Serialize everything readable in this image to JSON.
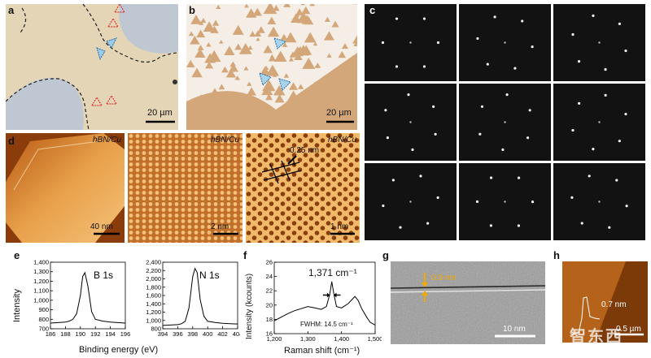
{
  "panels": {
    "a": {
      "label": "a",
      "scale": "20 µm"
    },
    "b": {
      "label": "b",
      "scale": "20 µm"
    },
    "c": {
      "label": "c"
    },
    "d": {
      "label": "d",
      "tag": "hBN/Cu",
      "scale1": "40 nm",
      "scale2": "2 nm",
      "scale3": "1 nm",
      "lattice": "0.25 nm"
    },
    "e": {
      "label": "e",
      "ylabel": "Intensity",
      "xlabel": "Binding energy (eV)"
    },
    "f": {
      "label": "f",
      "ylabel": "Intensity (kcounts)",
      "xlabel": "Raman shift (cm⁻¹)",
      "peak": "1,371 cm⁻¹",
      "fwhm": "FWHM: 14.5 cm⁻¹"
    },
    "g": {
      "label": "g",
      "thickness": "0.9 nm",
      "scale": "10 nm"
    },
    "h": {
      "label": "h",
      "height": "0.7 nm",
      "scale": "0.5 µm"
    }
  },
  "watermark": "智东西",
  "chart_data": [
    {
      "type": "line",
      "title": "B 1s",
      "xlabel": "",
      "ylabel": "Intensity",
      "xlim": [
        186,
        196
      ],
      "ylim": [
        700,
        1400
      ],
      "x": [
        186,
        187,
        188,
        188.5,
        189,
        189.5,
        190,
        190.3,
        190.6,
        191,
        191.5,
        192,
        193,
        194,
        195,
        196
      ],
      "y": [
        760,
        765,
        770,
        780,
        800,
        860,
        1050,
        1250,
        1290,
        1150,
        880,
        800,
        780,
        770,
        765,
        760
      ]
    },
    {
      "type": "line",
      "title": "N 1s",
      "xlabel": "",
      "ylabel": "",
      "xlim": [
        394,
        404
      ],
      "ylim": [
        800,
        2400
      ],
      "x": [
        394,
        395,
        396,
        396.5,
        397,
        397.5,
        398,
        398.3,
        398.6,
        399,
        399.5,
        400,
        401,
        402,
        403,
        404
      ],
      "y": [
        880,
        890,
        900,
        920,
        980,
        1300,
        2050,
        2250,
        2150,
        1500,
        1100,
        980,
        950,
        930,
        920,
        915
      ]
    },
    {
      "type": "line",
      "title": "",
      "xlabel": "Raman shift (cm⁻¹)",
      "ylabel": "Intensity (kcounts)",
      "xlim": [
        1200,
        1500
      ],
      "ylim": [
        16,
        26
      ],
      "x": [
        1200,
        1220,
        1240,
        1260,
        1280,
        1300,
        1320,
        1340,
        1355,
        1365,
        1371,
        1377,
        1385,
        1400,
        1420,
        1440,
        1450,
        1460,
        1475,
        1485,
        1500
      ],
      "y": [
        17.8,
        18.3,
        18.8,
        19.2,
        19.5,
        19.8,
        19.6,
        19.4,
        19.8,
        21.5,
        23.3,
        21.6,
        19.8,
        19.6,
        20.2,
        21.2,
        20.6,
        19.5,
        18.3,
        17.6,
        17.2
      ]
    }
  ]
}
